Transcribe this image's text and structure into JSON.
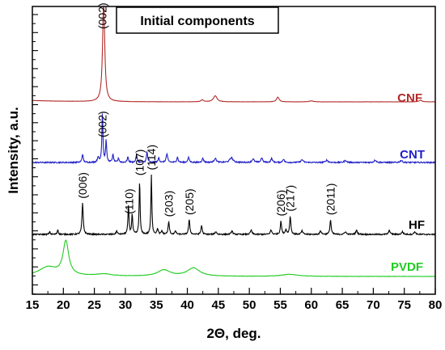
{
  "chart_data": {
    "type": "line",
    "title": "Initial components",
    "xlabel": "2Θ, deg.",
    "ylabel": "Intensity, a.u.",
    "xlim": [
      15,
      80
    ],
    "xticks": [
      "15",
      "20",
      "25",
      "30",
      "35",
      "40",
      "45",
      "50",
      "55",
      "60",
      "65",
      "70",
      "75",
      "80"
    ],
    "grid": false,
    "series": [
      {
        "name": "CNF",
        "color": "#b22a2a",
        "baseline": 0.5,
        "peaks": [
          [
            26.5,
            38,
            0.2
          ],
          [
            42.4,
            0.7,
            0.25
          ],
          [
            44.5,
            2.2,
            0.35
          ],
          [
            54.6,
            1.7,
            0.25
          ],
          [
            60,
            0.35,
            0.4
          ],
          [
            77.6,
            0.6,
            0.3
          ]
        ]
      },
      {
        "name": "CNT",
        "color": "#1f1fc8",
        "baseline": 0,
        "peaks": [
          [
            23.1,
            1.2,
            0.12
          ],
          [
            25.6,
            0.8,
            0.12
          ],
          [
            26.3,
            7.3,
            0.1
          ],
          [
            26.9,
            3.2,
            0.1
          ],
          [
            28,
            1.1,
            0.12
          ],
          [
            28.9,
            0.6,
            0.12
          ],
          [
            30.4,
            0.8,
            0.12
          ],
          [
            31.8,
            1.1,
            0.12
          ],
          [
            33.5,
            1.5,
            0.12
          ],
          [
            35.4,
            0.7,
            0.12
          ],
          [
            36.7,
            1.2,
            0.15
          ],
          [
            38.4,
            0.8,
            0.12
          ],
          [
            40.2,
            0.7,
            0.15
          ],
          [
            42.5,
            0.6,
            0.15
          ],
          [
            44.5,
            0.6,
            0.2
          ],
          [
            47.1,
            0.7,
            0.3
          ],
          [
            50.6,
            0.5,
            0.2
          ],
          [
            52,
            0.7,
            0.15
          ],
          [
            53.6,
            0.6,
            0.15
          ],
          [
            55.5,
            0.5,
            0.15
          ],
          [
            58.5,
            0.4,
            0.2
          ],
          [
            62.5,
            0.35,
            0.2
          ],
          [
            65.5,
            0.3,
            0.2
          ],
          [
            70.3,
            0.35,
            0.2
          ],
          [
            74.5,
            0.3,
            0.2
          ]
        ]
      },
      {
        "name": "HF",
        "color": "#000000",
        "baseline": 0,
        "peaks": [
          [
            17.8,
            0.4,
            0.1
          ],
          [
            19.1,
            0.7,
            0.1
          ],
          [
            23.1,
            4.5,
            0.12
          ],
          [
            28.6,
            0.5,
            0.12
          ],
          [
            30.5,
            4.2,
            0.1
          ],
          [
            31.1,
            2.9,
            0.1
          ],
          [
            32.3,
            7.8,
            0.09
          ],
          [
            34.2,
            8.6,
            0.09
          ],
          [
            35.2,
            0.8,
            0.12
          ],
          [
            35.9,
            0.5,
            0.12
          ],
          [
            37,
            1.8,
            0.12
          ],
          [
            38.1,
            0.5,
            0.12
          ],
          [
            40.3,
            2.1,
            0.12
          ],
          [
            42.3,
            1.3,
            0.12
          ],
          [
            44.6,
            0.4,
            0.15
          ],
          [
            47.2,
            0.5,
            0.15
          ],
          [
            50.3,
            0.6,
            0.15
          ],
          [
            53.5,
            0.6,
            0.15
          ],
          [
            55.1,
            1.9,
            0.12
          ],
          [
            55.9,
            0.7,
            0.12
          ],
          [
            56.6,
            2.6,
            0.12
          ],
          [
            58.5,
            0.5,
            0.15
          ],
          [
            61.5,
            0.5,
            0.15
          ],
          [
            63.1,
            2.1,
            0.12
          ],
          [
            65.5,
            0.4,
            0.15
          ],
          [
            67.3,
            0.6,
            0.15
          ],
          [
            72.6,
            0.6,
            0.15
          ],
          [
            74.7,
            0.4,
            0.15
          ],
          [
            76.7,
            0.4,
            0.15
          ]
        ]
      },
      {
        "name": "PVDF",
        "color": "#22cc22",
        "baseline": 0,
        "peaks": [
          [
            17.5,
            1.3,
            1.8
          ],
          [
            20.4,
            4.9,
            0.55
          ],
          [
            26.5,
            0.3,
            1.5
          ],
          [
            36.2,
            0.9,
            1.2
          ],
          [
            41,
            1.2,
            1.2
          ],
          [
            56.5,
            0.3,
            1.5
          ]
        ]
      }
    ],
    "annotations": [
      {
        "text": "(002)",
        "x": 26.3,
        "series": "CNF"
      },
      {
        "text": "(002)",
        "x": 26.3,
        "series": "CNT"
      },
      {
        "text": "(006)",
        "x": 23.1,
        "series": "HF"
      },
      {
        "text": "(110)",
        "x": 30.6,
        "series": "HF"
      },
      {
        "text": "(107)",
        "x": 32.3,
        "series": "HF"
      },
      {
        "text": "(114)",
        "x": 34.2,
        "series": "HF"
      },
      {
        "text": "(203)",
        "x": 37,
        "series": "HF"
      },
      {
        "text": "(205)",
        "x": 40.3,
        "series": "HF"
      },
      {
        "text": "(206)",
        "x": 55.1,
        "series": "HF"
      },
      {
        "text": "(217)",
        "x": 56.6,
        "series": "HF"
      },
      {
        "text": "(2011)",
        "x": 63.1,
        "series": "HF"
      }
    ]
  }
}
